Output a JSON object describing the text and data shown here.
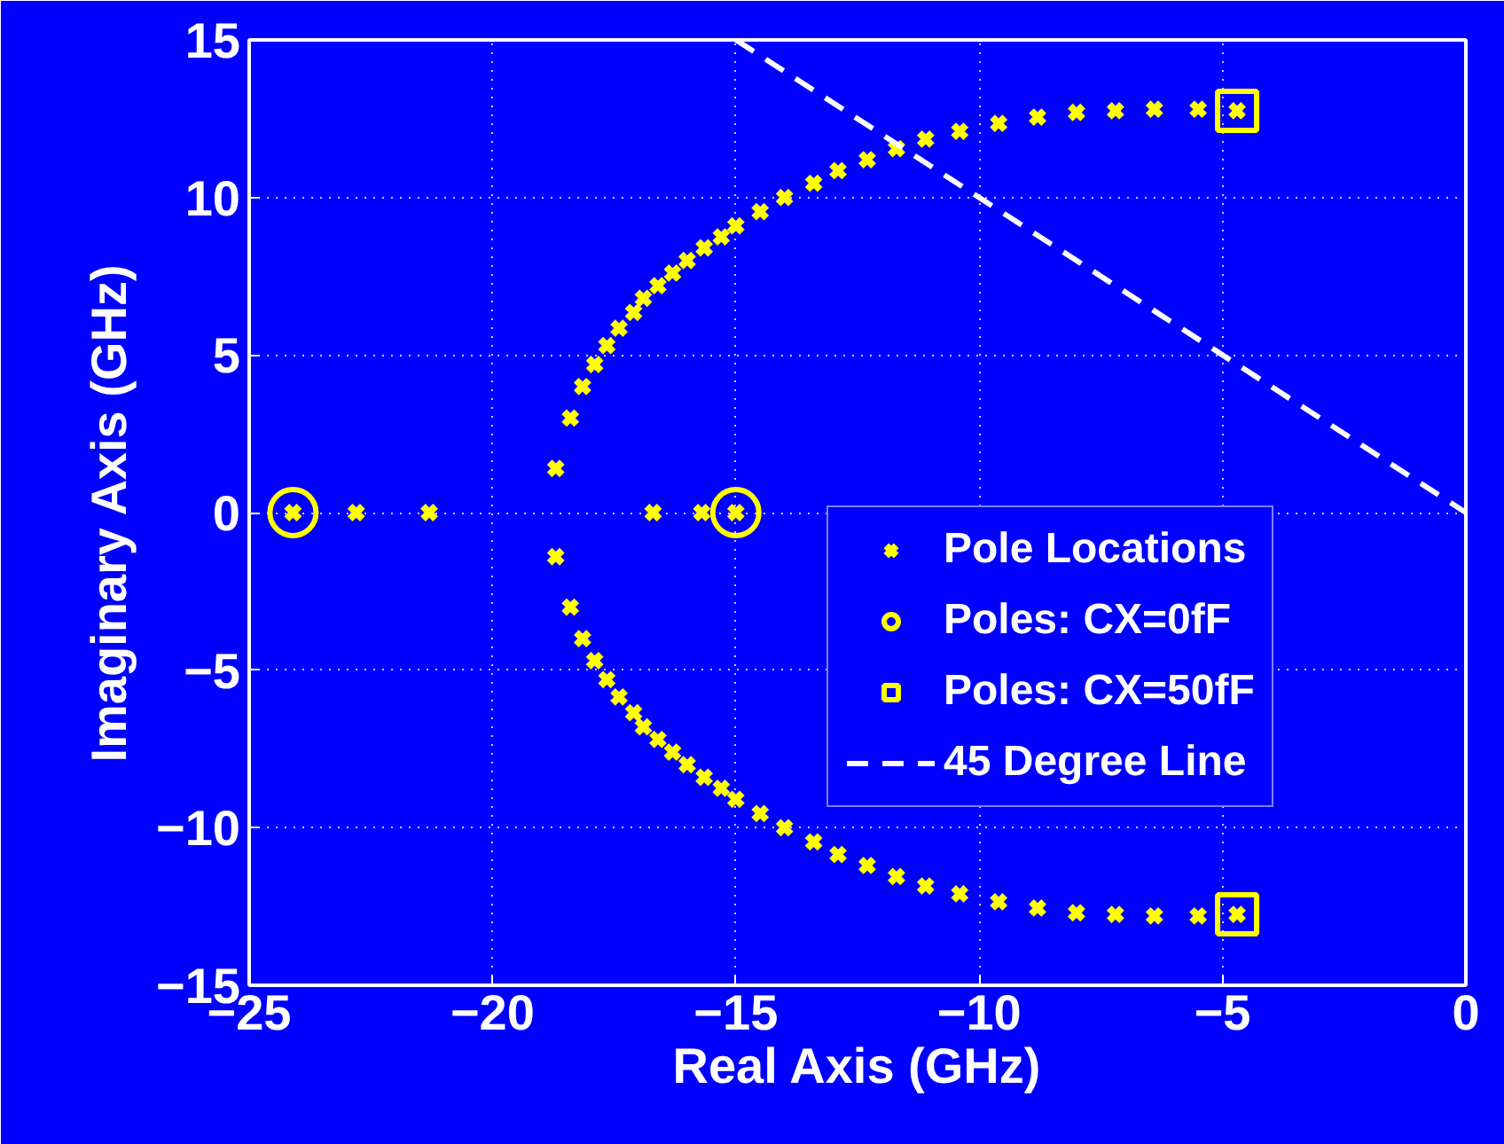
{
  "chart_data": {
    "type": "scatter",
    "xlabel": "Real Axis (GHz)",
    "ylabel": "Imaginary Axis (GHz)",
    "xlim": [
      -25,
      0
    ],
    "ylim": [
      -15,
      15
    ],
    "xticks": [
      {
        "value": -25,
        "label": "−25"
      },
      {
        "value": -20,
        "label": "−20"
      },
      {
        "value": -15,
        "label": "−15"
      },
      {
        "value": -10,
        "label": "−10"
      },
      {
        "value": -5,
        "label": "−5"
      },
      0
    ],
    "yticks": [
      {
        "value": -15,
        "label": "−15"
      },
      {
        "value": -10,
        "label": "−10"
      },
      {
        "value": -5,
        "label": "−5"
      },
      0,
      5,
      10,
      15
    ],
    "grid": true,
    "legend": "right",
    "series": [
      {
        "name": "Pole Locations",
        "marker": "cross",
        "color": "#ffff00",
        "x": [
          -24.1,
          -22.8,
          -21.3,
          -16.7,
          -15.7,
          -15.0,
          -18.7,
          -18.4,
          -18.15,
          -17.9,
          -17.65,
          -17.4,
          -17.1,
          -16.9,
          -16.6,
          -16.3,
          -16.0,
          -15.65,
          -15.3,
          -15.0,
          -14.5,
          -14.0,
          -13.4,
          -12.9,
          -12.3,
          -11.7,
          -11.1,
          -10.4,
          -9.6,
          -8.8,
          -8.0,
          -7.2,
          -6.4,
          -5.5,
          -4.7,
          -18.7,
          -18.4,
          -18.15,
          -17.9,
          -17.65,
          -17.4,
          -17.1,
          -16.9,
          -16.6,
          -16.3,
          -16.0,
          -15.65,
          -15.3,
          -15.0,
          -14.5,
          -14.0,
          -13.4,
          -12.9,
          -12.3,
          -11.7,
          -11.1,
          -10.4,
          -9.6,
          -8.8,
          -8.0,
          -7.2,
          -6.4,
          -5.5,
          -4.7
        ],
        "values": [
          0,
          0,
          0,
          0,
          0,
          0,
          1.4,
          3.0,
          4.0,
          4.7,
          5.3,
          5.85,
          6.35,
          6.8,
          7.2,
          7.6,
          8.0,
          8.4,
          8.75,
          9.1,
          9.55,
          10.0,
          10.45,
          10.85,
          11.2,
          11.55,
          11.85,
          12.1,
          12.35,
          12.55,
          12.7,
          12.75,
          12.8,
          12.8,
          12.75,
          -1.4,
          -3.0,
          -4.0,
          -4.7,
          -5.3,
          -5.85,
          -6.35,
          -6.8,
          -7.2,
          -7.6,
          -8.0,
          -8.4,
          -8.75,
          -9.1,
          -9.55,
          -10.0,
          -10.45,
          -10.85,
          -11.2,
          -11.55,
          -11.85,
          -12.1,
          -12.35,
          -12.55,
          -12.7,
          -12.75,
          -12.8,
          -12.8,
          -12.75
        ]
      },
      {
        "name": "Poles: CX=0fF",
        "marker": "circle",
        "color": "#ffff00",
        "x": [
          -24.1,
          -15.0
        ],
        "values": [
          0,
          0
        ]
      },
      {
        "name": "Poles: CX=50fF",
        "marker": "square",
        "color": "#ffff00",
        "x": [
          -4.7,
          -4.7
        ],
        "values": [
          12.75,
          -12.75
        ]
      },
      {
        "name": "45 Degree Line",
        "type": "line",
        "line_style": "dashed",
        "marker": "none",
        "color": "#ffffff",
        "x": [
          -15,
          0
        ],
        "values": [
          15,
          0
        ]
      }
    ]
  }
}
